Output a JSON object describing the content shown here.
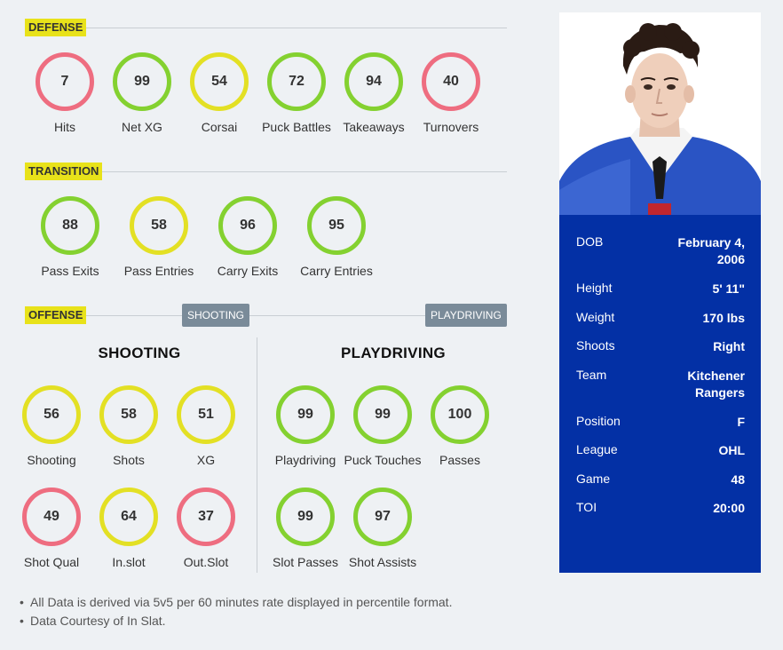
{
  "sections": {
    "defense": "DEFENSE",
    "transition": "TRANSITION",
    "offense": "OFFENSE",
    "shooting_tag": "SHOOTING",
    "playdriving_tag": "PLAYDRIVING"
  },
  "columns": {
    "shooting": "SHOOTING",
    "playdriving": "PLAYDRIVING"
  },
  "colors": {
    "red": "#ee6d80",
    "green": "#84d130",
    "yellow": "#e3e024",
    "card": "#0330a5",
    "tag": "#e8e21a"
  },
  "defense": [
    {
      "label": "Hits",
      "value": "7",
      "color": "red"
    },
    {
      "label": "Net XG",
      "value": "99",
      "color": "green"
    },
    {
      "label": "Corsai",
      "value": "54",
      "color": "yellow"
    },
    {
      "label": "Puck Battles",
      "value": "72",
      "color": "green"
    },
    {
      "label": "Takeaways",
      "value": "94",
      "color": "green"
    },
    {
      "label": "Turnovers",
      "value": "40",
      "color": "red"
    }
  ],
  "transition": [
    {
      "label": "Pass Exits",
      "value": "88",
      "color": "green"
    },
    {
      "label": "Pass Entries",
      "value": "58",
      "color": "yellow"
    },
    {
      "label": "Carry Exits",
      "value": "96",
      "color": "green"
    },
    {
      "label": "Carry Entries",
      "value": "95",
      "color": "green"
    }
  ],
  "shooting": [
    {
      "label": "Shooting",
      "value": "56",
      "color": "yellow"
    },
    {
      "label": "Shots",
      "value": "58",
      "color": "yellow"
    },
    {
      "label": "XG",
      "value": "51",
      "color": "yellow"
    },
    {
      "label": "Shot Qual",
      "value": "49",
      "color": "red"
    },
    {
      "label": "In.slot",
      "value": "64",
      "color": "yellow"
    },
    {
      "label": "Out.Slot",
      "value": "37",
      "color": "red"
    }
  ],
  "playdriving": [
    {
      "label": "Playdriving",
      "value": "99",
      "color": "green"
    },
    {
      "label": "Puck Touches",
      "value": "99",
      "color": "green"
    },
    {
      "label": "Passes",
      "value": "100",
      "color": "green"
    },
    {
      "label": "Slot Passes",
      "value": "99",
      "color": "green"
    },
    {
      "label": "Shot Assists",
      "value": "97",
      "color": "green"
    }
  ],
  "player": {
    "dob_label": "DOB",
    "dob": "February 4, 2006",
    "height_label": "Height",
    "height": "5' 11\"",
    "weight_label": "Weight",
    "weight": "170 lbs",
    "shoots_label": "Shoots",
    "shoots": "Right",
    "team_label": "Team",
    "team": "Kitchener Rangers",
    "position_label": "Position",
    "position": "F",
    "league_label": "League",
    "league": "OHL",
    "game_label": "Game",
    "game": "48",
    "toi_label": "TOI",
    "toi": "20:00"
  },
  "notes": [
    "All Data is derived via 5v5 per 60 minutes rate displayed in percentile format.",
    "Data Courtesy of In Slat."
  ]
}
